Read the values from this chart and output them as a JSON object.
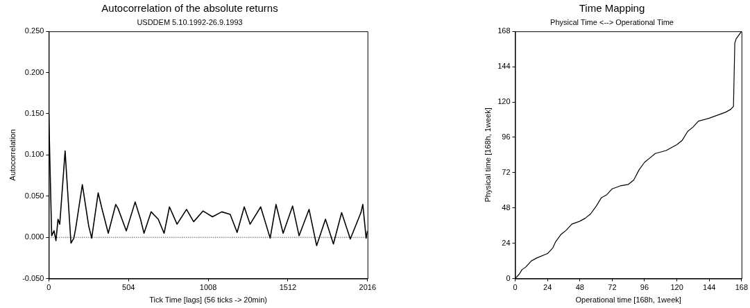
{
  "chart_data": [
    {
      "type": "line",
      "title": "Autocorrelation of the absolute returns",
      "subtitle": "USDDEM 5.10.1992-26.9.1993",
      "xlabel": "Tick Time [lags] (56 ticks -> 20min)",
      "ylabel": "Autocorrelation",
      "xlim": [
        0,
        2016
      ],
      "xticks": [
        0,
        504,
        1008,
        1512,
        2016
      ],
      "ylim": [
        -0.05,
        0.25
      ],
      "yticks": [
        {
          "value": -0.05,
          "label": "-0.050"
        },
        {
          "value": 0,
          "label": "0.000"
        },
        {
          "value": 0.05,
          "label": "0.050"
        },
        {
          "value": 0.1,
          "label": "0.100"
        },
        {
          "value": 0.15,
          "label": "0.150"
        },
        {
          "value": 0.2,
          "label": "0.200"
        },
        {
          "value": 0.25,
          "label": "0.250"
        }
      ],
      "grid": false,
      "legend": false,
      "marker": "none",
      "line_style": "solid",
      "ref_lines": [
        {
          "axis": "y",
          "value": 0,
          "label": null,
          "color": "#000000",
          "line_style": "dotted"
        }
      ],
      "series": [
        {
          "color": "#000000",
          "x": [
            0,
            6,
            18,
            33,
            45,
            58,
            69,
            103,
            110,
            140,
            158,
            170,
            212,
            252,
            271,
            312,
            337,
            376,
            423,
            438,
            490,
            546,
            580,
            602,
            647,
            692,
            729,
            763,
            811,
            871,
            916,
            975,
            1035,
            1094,
            1147,
            1191,
            1236,
            1273,
            1340,
            1400,
            1437,
            1482,
            1542,
            1583,
            1646,
            1694,
            1750,
            1800,
            1852,
            1907,
            1974,
            1986,
            2007,
            2016
          ],
          "values": [
            0.15,
            0.098,
            0.002,
            0.008,
            -0.004,
            0.022,
            0.016,
            0.105,
            0.083,
            -0.007,
            -0.001,
            0.011,
            0.064,
            0.014,
            -0.001,
            0.054,
            0.034,
            0.005,
            0.04,
            0.035,
            0.008,
            0.043,
            0.022,
            0.005,
            0.031,
            0.022,
            0.005,
            0.037,
            0.016,
            0.034,
            0.019,
            0.032,
            0.025,
            0.031,
            0.028,
            0.006,
            0.037,
            0.016,
            0.037,
            -0.001,
            0.04,
            0.005,
            0.038,
            0.002,
            0.034,
            -0.01,
            0.022,
            -0.008,
            0.03,
            -0.002,
            0.03,
            0.04,
            -0.001,
            0.008
          ]
        }
      ]
    },
    {
      "type": "line",
      "title": "Time Mapping",
      "subtitle": "Physical Time <--> Operational Time",
      "xlabel": "Operational time [168h, 1week]",
      "ylabel": "Physical time [168h, 1week]",
      "xlim": [
        0,
        168
      ],
      "xticks": [
        0,
        24,
        48,
        72,
        96,
        120,
        144,
        168
      ],
      "ylim": [
        0,
        168
      ],
      "yticks": [
        0,
        24,
        48,
        72,
        96,
        120,
        144,
        168
      ],
      "grid": false,
      "legend": false,
      "marker": "none",
      "line_style": "solid",
      "series": [
        {
          "color": "#000000",
          "x": [
            0,
            3,
            5,
            8,
            12,
            16,
            24,
            28,
            30,
            34,
            38,
            42,
            48,
            52,
            56,
            60,
            64,
            68,
            72,
            78,
            84,
            88,
            92,
            96,
            100,
            104,
            112,
            120,
            124,
            128,
            132,
            136,
            144,
            156,
            160,
            162,
            163,
            164,
            168
          ],
          "values": [
            0,
            3,
            6,
            8,
            12,
            14,
            17,
            21,
            25,
            30,
            33,
            37,
            39,
            41,
            44,
            49,
            55,
            57,
            61,
            63,
            64,
            67,
            74,
            79,
            82,
            85,
            87,
            91,
            94,
            100,
            103,
            107,
            109,
            113,
            115,
            117,
            160,
            163,
            168
          ]
        }
      ]
    }
  ]
}
